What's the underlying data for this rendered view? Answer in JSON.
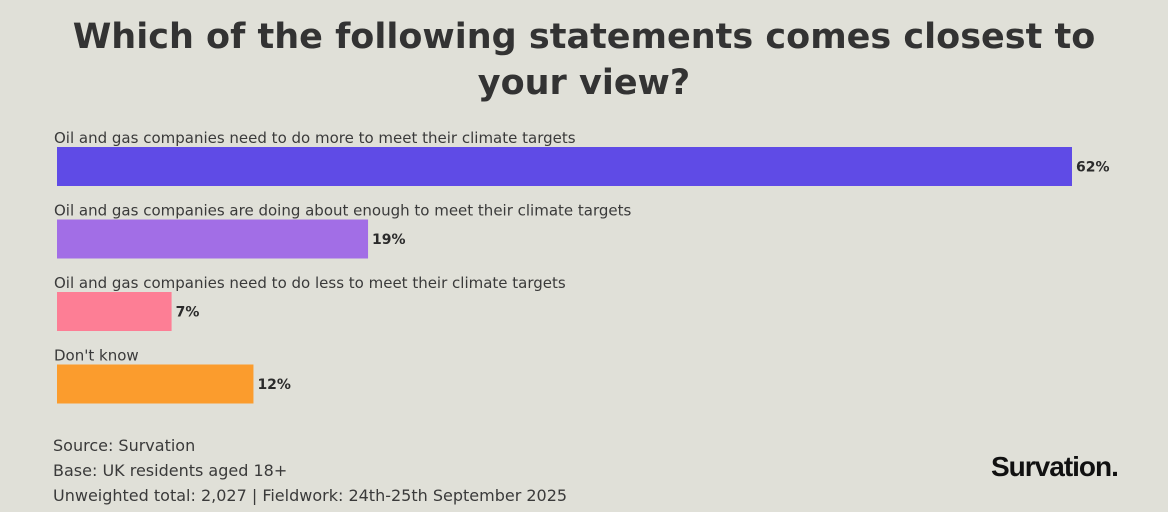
{
  "chart_data": {
    "type": "bar",
    "orientation": "horizontal",
    "title": "Which of the following statements comes closest to your view?",
    "categories": [
      "Oil and gas companies need to do more to meet their climate targets",
      "Oil and gas companies are doing about enough to meet their climate targets",
      "Oil and gas companies need to do less to meet their climate targets",
      "Don't know"
    ],
    "values": [
      62,
      19,
      7,
      12
    ],
    "value_labels": [
      "62%",
      "19%",
      "7%",
      "12%"
    ],
    "colors": [
      "#5f4be6",
      "#a26ee6",
      "#fd7e95",
      "#fb9c2d"
    ],
    "xlim": [
      0,
      62
    ],
    "grid": false,
    "legend": "none"
  },
  "footer": {
    "source": "Source: Survation",
    "base": "Base: UK residents aged 18+",
    "fieldwork": "Unweighted total: 2,027 | Fieldwork: 24th-25th September 2025"
  },
  "brand": {
    "logo_text": "Survation."
  },
  "colors": {
    "background": "#e0e0d8",
    "text": "#333333"
  }
}
